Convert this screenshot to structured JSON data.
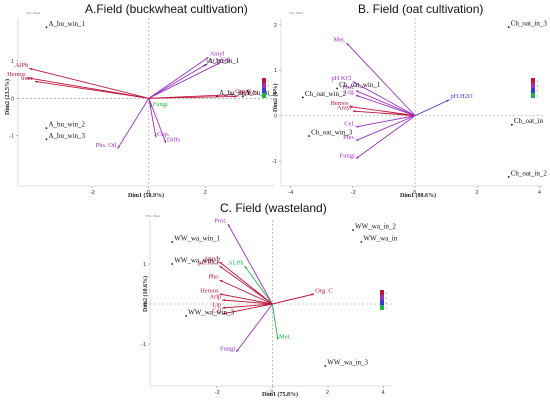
{
  "colors": {
    "high": "#c0143c",
    "mid": "#9b30c4",
    "low": "#22b24c",
    "blue": "#3b3bd6"
  },
  "chart_data": [
    {
      "type": "scatter",
      "panel": "A",
      "title": "A.Field (buckwheat cultivation)",
      "subtitle": "PCA - Biplot",
      "xlabel": "Dim1 (58.9%)",
      "ylabel": "Dim2 (23.5%)",
      "xlim": [
        -4.6,
        4.4
      ],
      "ylim": [
        -2.35,
        2.15
      ],
      "xticks": [
        -2,
        0,
        2
      ],
      "yticks": [
        -1,
        0,
        1
      ],
      "points": [
        {
          "label": "A_bu_win_1",
          "x": -3.6,
          "y": 1.9
        },
        {
          "label": "A_bu_win_2",
          "x": -3.6,
          "y": -0.8
        },
        {
          "label": "A_bu_win_3",
          "x": -3.6,
          "y": -1.1
        },
        {
          "label": "A_bu_in_1",
          "x": 2.0,
          "y": 0.9
        },
        {
          "label": "A_bu_in_2",
          "x": 2.4,
          "y": 0.05
        },
        {
          "label": "A_bu_in_3",
          "x": 3.3,
          "y": 0.05
        }
      ],
      "vectors": [
        {
          "label": "Amyl",
          "x": 2.1,
          "y": 1.1,
          "color": "#9b30c4"
        },
        {
          "label": "Cel.",
          "x": 2.5,
          "y": 0.95,
          "color": "#9b30c4"
        },
        {
          "label": "pH.H2O",
          "x": 2.0,
          "y": 0.9,
          "color": "#9b30c4"
        },
        {
          "label": "Fungi",
          "x": 0.1,
          "y": -0.25,
          "color": "#22b24c"
        },
        {
          "label": "Cop.",
          "x": 0.25,
          "y": -1.05,
          "color": "#9b30c4"
        },
        {
          "label": "Diffs",
          "x": 0.6,
          "y": -1.2,
          "color": "#9b30c4"
        },
        {
          "label": "Phs. Oil",
          "x": -1.1,
          "y": -1.35,
          "color": "#9b30c4"
        },
        {
          "label": "AlPh",
          "x": -4.2,
          "y": 0.8,
          "color": "#c0143c"
        },
        {
          "label": "Hemos",
          "x": -4.3,
          "y": 0.55,
          "color": "#c0143c"
        },
        {
          "label": "Sucr.",
          "x": -4.0,
          "y": 0.45,
          "color": "#c0143c"
        },
        {
          "label": "Org.C",
          "x": 3.0,
          "y": 0.1,
          "color": "#c0143c"
        },
        {
          "label": "pH KCl",
          "x": 3.1,
          "y": 0.05,
          "color": "#c0143c"
        }
      ],
      "legend": [
        "4",
        "3",
        "2",
        "1"
      ]
    },
    {
      "type": "scatter",
      "panel": "B",
      "title": "B. Field (oat cultivation)",
      "subtitle": "PCA - Biplot",
      "xlabel": "Dim1 (88.6%)",
      "ylabel": "Dim2 (8%)",
      "xlim": [
        -4.3,
        4.1
      ],
      "ylim": [
        -1.55,
        2.15
      ],
      "xticks": [
        -4,
        -2,
        0,
        2,
        4
      ],
      "yticks": [
        -1,
        0,
        1,
        2
      ],
      "points": [
        {
          "label": "Ch_oat_in_3",
          "x": 3.0,
          "y": 1.95
        },
        {
          "label": "Ch_oat_win_1",
          "x": -2.5,
          "y": 0.6
        },
        {
          "label": "Ch_oat_win_2",
          "x": -3.6,
          "y": 0.4
        },
        {
          "label": "Ch_oat_in",
          "x": 3.1,
          "y": -0.2
        },
        {
          "label": "Ch_oat_win_3",
          "x": -3.4,
          "y": -0.45
        },
        {
          "label": "Ch_oat_in_2",
          "x": 3.0,
          "y": -1.35
        }
      ],
      "vectors": [
        {
          "label": "Met.",
          "x": -2.2,
          "y": 1.6,
          "color": "#9b30c4"
        },
        {
          "label": "pH KCl",
          "x": -2.0,
          "y": 0.75,
          "color": "#9b30c4"
        },
        {
          "label": "pH.H2O",
          "x": 1.1,
          "y": 0.35,
          "color": "#3b3bd6"
        },
        {
          "label": "Prot.",
          "x": -1.9,
          "y": 0.55,
          "color": "#9b30c4"
        },
        {
          "label": "Lig.",
          "x": -1.9,
          "y": 0.45,
          "color": "#9b30c4"
        },
        {
          "label": "Hemos",
          "x": -2.1,
          "y": 0.2,
          "color": "#c0143c"
        },
        {
          "label": "Amyl",
          "x": -2.0,
          "y": 0.1,
          "color": "#c0143c"
        },
        {
          "label": "Cel.",
          "x": -1.9,
          "y": -0.25,
          "color": "#9b30c4"
        },
        {
          "label": "Pho.",
          "x": -1.9,
          "y": -0.55,
          "color": "#9b30c4"
        },
        {
          "label": "Fungi",
          "x": -1.9,
          "y": -0.95,
          "color": "#9b30c4"
        }
      ],
      "legend": [
        "4",
        "3",
        "2",
        "1"
      ]
    },
    {
      "type": "scatter",
      "panel": "C",
      "title": "C. Field (wasteland)",
      "subtitle": "PCA - Biplot",
      "xlabel": "Dim1 (75.8%)",
      "ylabel": "Dim2 (10.6%)",
      "xlim": [
        -4.4,
        4.3
      ],
      "ylim": [
        -2.05,
        2.1
      ],
      "xticks": [
        -2,
        0,
        2,
        4
      ],
      "yticks": [
        -1,
        0,
        1
      ],
      "points": [
        {
          "label": "WW_wa_in_2",
          "x": 2.9,
          "y": 1.85
        },
        {
          "label": "WW_wa_in",
          "x": 3.2,
          "y": 1.55
        },
        {
          "label": "WW_wa_win_1",
          "x": -3.6,
          "y": 1.55
        },
        {
          "label": "WW_wa_win_2",
          "x": -3.6,
          "y": 1.0
        },
        {
          "label": "WW_wa_win_3",
          "x": -3.1,
          "y": -0.3
        },
        {
          "label": "WW_wa_in_3",
          "x": 1.9,
          "y": -1.55
        }
      ],
      "vectors": [
        {
          "label": "Prot.",
          "x": -1.6,
          "y": 2.0,
          "color": "#9b30c4"
        },
        {
          "label": "Amyl",
          "x": -1.9,
          "y": 1.05,
          "color": "#c0143c"
        },
        {
          "label": "pH.KCl",
          "x": -1.9,
          "y": 0.95,
          "color": "#c0143c"
        },
        {
          "label": "ALPh",
          "x": -1.0,
          "y": 0.95,
          "color": "#22b24c"
        },
        {
          "label": "Pho",
          "x": -1.9,
          "y": 0.6,
          "color": "#c0143c"
        },
        {
          "label": "Hemos",
          "x": -1.9,
          "y": 0.25,
          "color": "#c0143c"
        },
        {
          "label": "Arlp",
          "x": -1.8,
          "y": 0.1,
          "color": "#c0143c"
        },
        {
          "label": "Lip",
          "x": -1.8,
          "y": -0.1,
          "color": "#c0143c"
        },
        {
          "label": "Cel",
          "x": -1.8,
          "y": -0.25,
          "color": "#c0143c"
        },
        {
          "label": "Org. C",
          "x": 1.5,
          "y": 0.25,
          "color": "#c0143c"
        },
        {
          "label": "Met.",
          "x": 0.2,
          "y": -0.9,
          "color": "#22b24c"
        },
        {
          "label": "Fungi",
          "x": -1.3,
          "y": -1.2,
          "color": "#9b30c4"
        }
      ],
      "legend": [
        "4",
        "3",
        "2",
        "1"
      ]
    }
  ]
}
